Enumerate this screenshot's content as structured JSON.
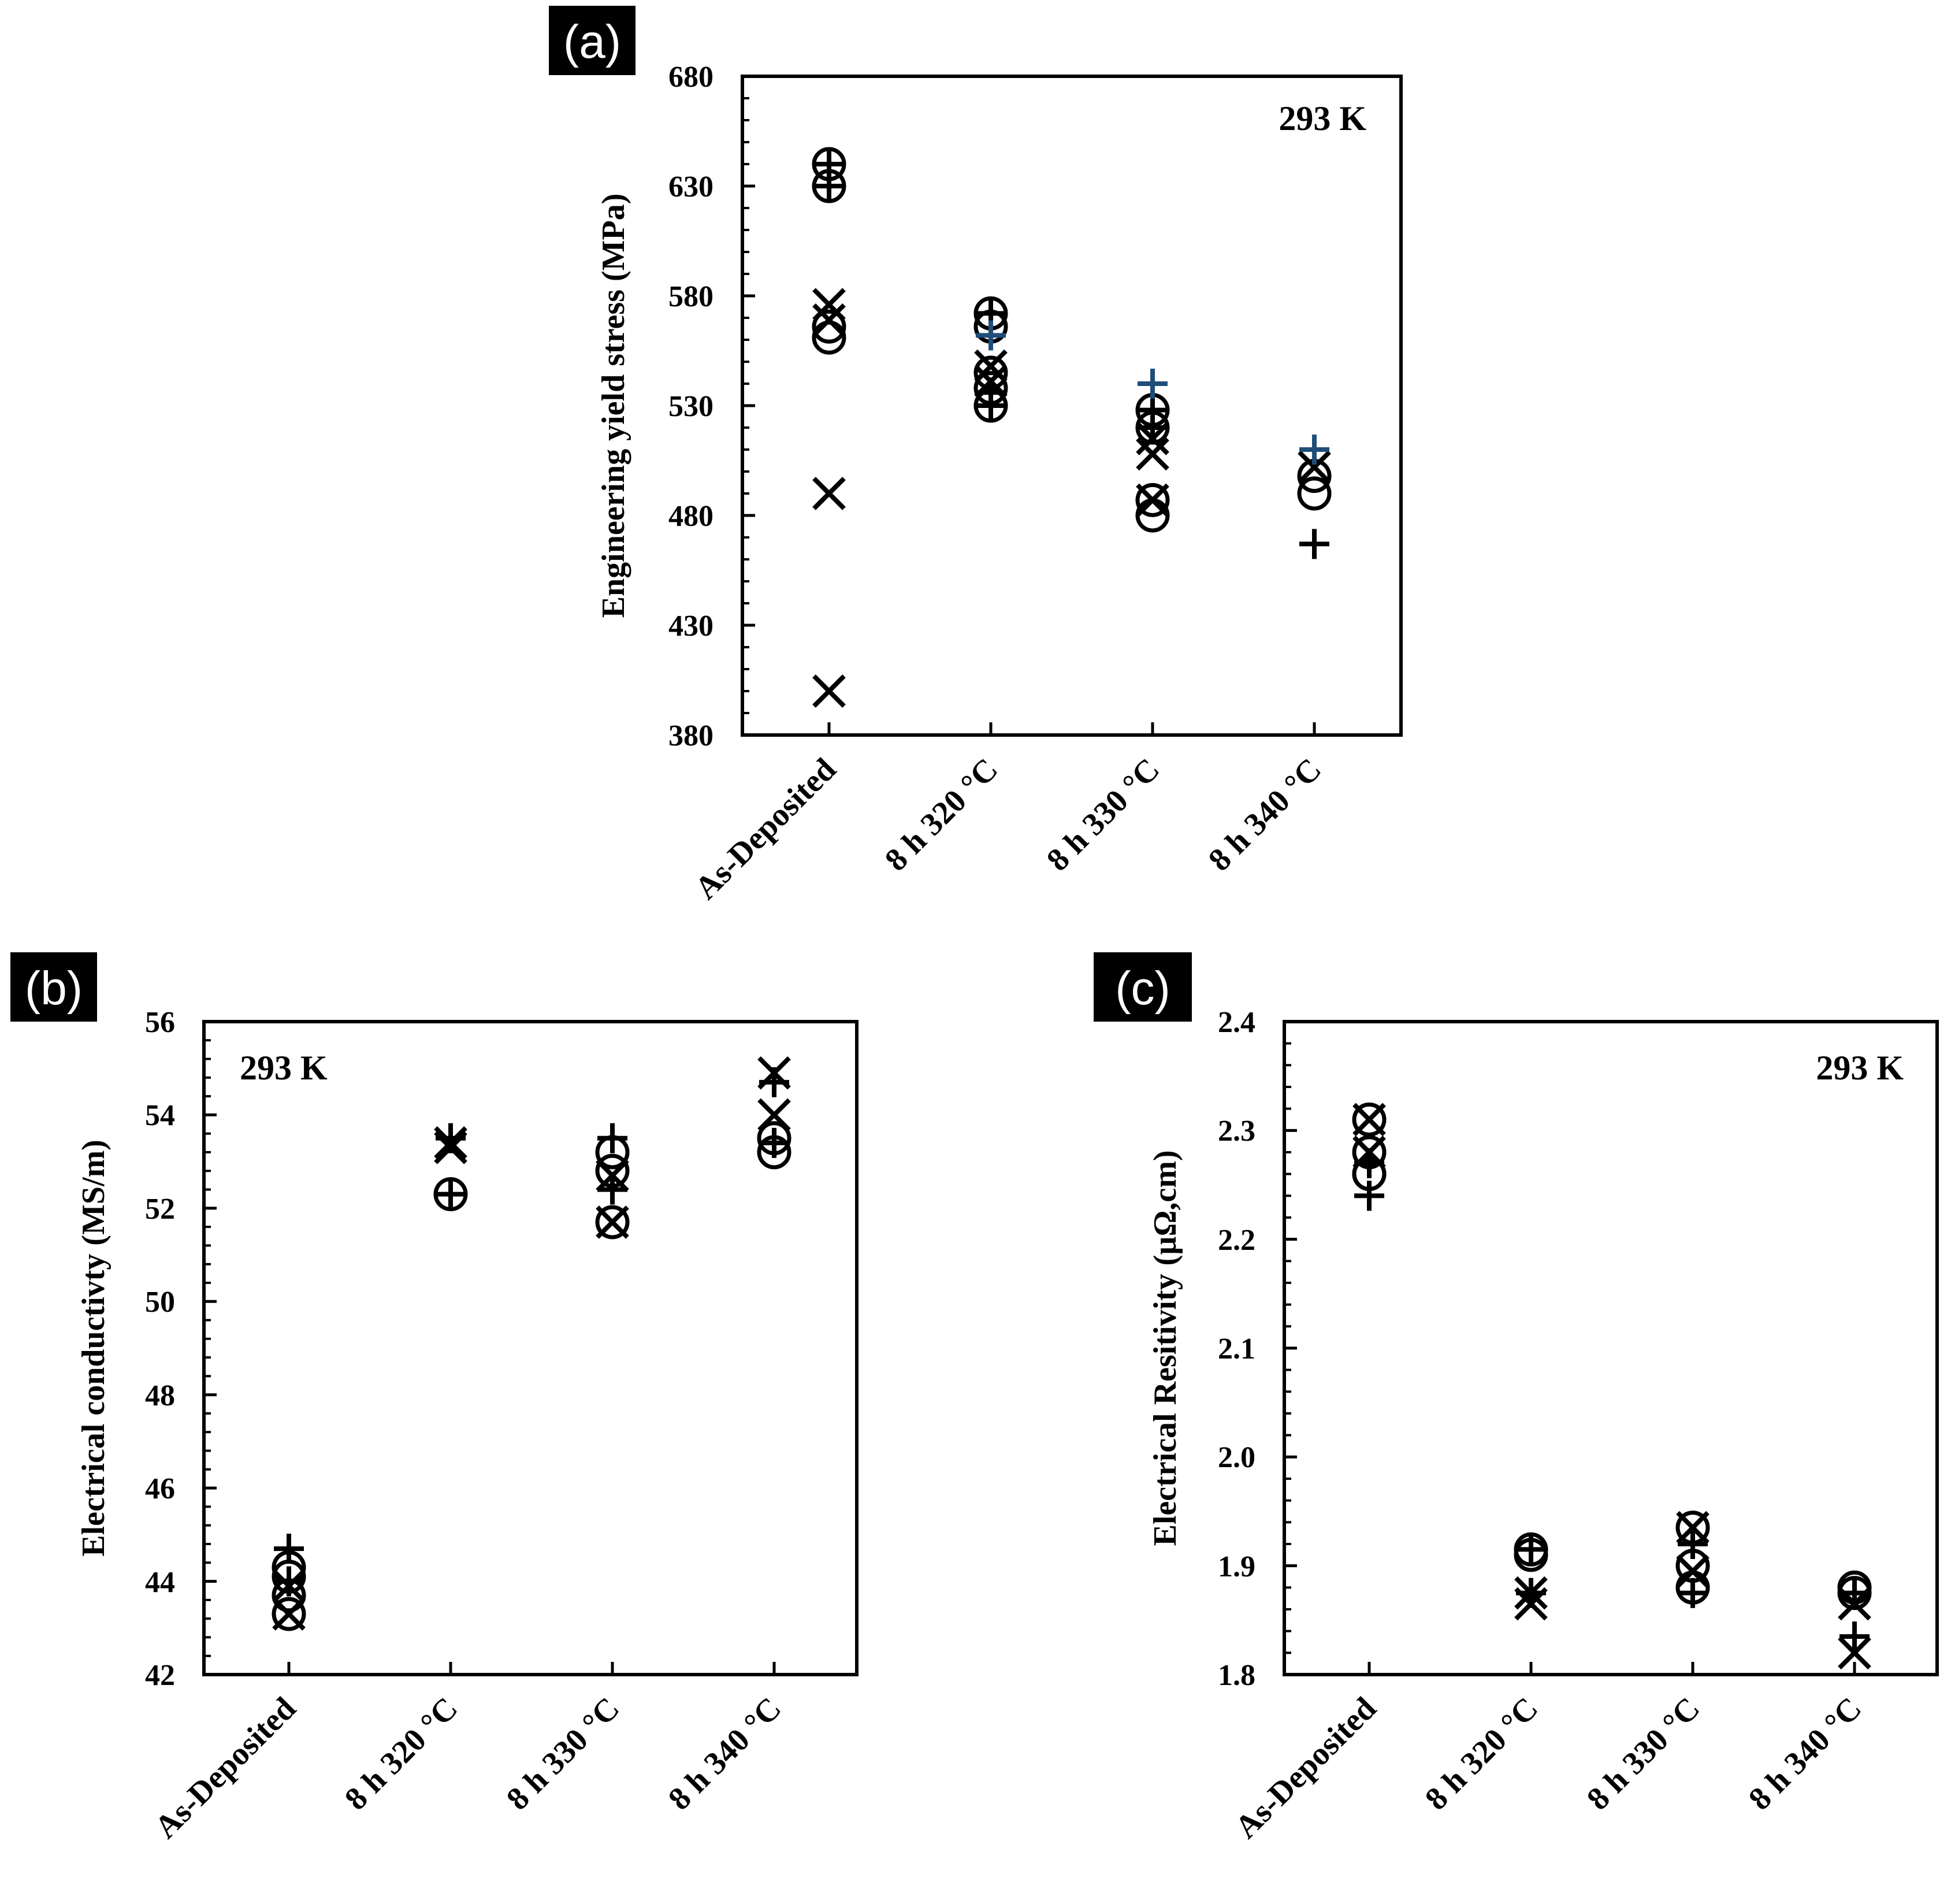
{
  "chart_data": [
    {
      "panel": "(a)",
      "type": "scatter",
      "ylabel": "Engineering yield  stress (MPa)",
      "annotation": "293 K",
      "categories": [
        "As-Deposited",
        "8 h 320 °C",
        "8 h 330 °C",
        "8 h 340 °C"
      ],
      "ylim": [
        380,
        680
      ],
      "yticks": [
        "380",
        "430",
        "480",
        "530",
        "580",
        "630",
        "680"
      ],
      "series": [
        {
          "name": "circle",
          "marker": "circle",
          "color": "#000000",
          "values": [
            [
              0,
              640
            ],
            [
              0,
              630
            ],
            [
              0,
              566
            ],
            [
              0,
              561
            ],
            [
              1,
              572
            ],
            [
              1,
              566
            ],
            [
              1,
              545
            ],
            [
              1,
              538
            ],
            [
              1,
              530
            ],
            [
              2,
              528
            ],
            [
              2,
              520
            ],
            [
              2,
              487
            ],
            [
              2,
              480
            ],
            [
              3,
              498
            ],
            [
              3,
              490
            ]
          ]
        },
        {
          "name": "x",
          "marker": "x",
          "color": "#000000",
          "values": [
            [
              0,
              576
            ],
            [
              0,
              569
            ],
            [
              0,
              490
            ],
            [
              0,
              400
            ],
            [
              1,
              548
            ],
            [
              1,
              541
            ],
            [
              2,
              515
            ],
            [
              2,
              508
            ],
            [
              2,
              487
            ],
            [
              3,
              502
            ]
          ]
        },
        {
          "name": "plus",
          "marker": "plus",
          "color": "#000000",
          "values": [
            [
              0,
              640
            ],
            [
              0,
              630
            ],
            [
              1,
              572
            ],
            [
              1,
              536
            ],
            [
              1,
              530
            ],
            [
              2,
              528
            ],
            [
              2,
              520
            ],
            [
              3,
              467
            ]
          ]
        },
        {
          "name": "plus-blue",
          "marker": "plus",
          "color": "#1f4e79",
          "values": [
            [
              1,
              562
            ],
            [
              2,
              540
            ],
            [
              3,
              510
            ]
          ]
        }
      ]
    },
    {
      "panel": "(b)",
      "type": "scatter",
      "ylabel": "Electrical conductivty (MS/m)",
      "annotation": "293 K",
      "categories": [
        "As-Deposited",
        "8 h 320 °C",
        "8 h 330 °C",
        "8 h 340 °C"
      ],
      "ylim": [
        42,
        56
      ],
      "yticks": [
        "42",
        "44",
        "46",
        "48",
        "50",
        "52",
        "54",
        "56"
      ],
      "series": [
        {
          "name": "circle",
          "marker": "circle",
          "color": "#000000",
          "values": [
            [
              0,
              44.3
            ],
            [
              0,
              44.1
            ],
            [
              0,
              43.7
            ],
            [
              0,
              43.3
            ],
            [
              1,
              52.3
            ],
            [
              2,
              53.2
            ],
            [
              2,
              52.8
            ],
            [
              2,
              51.7
            ],
            [
              3,
              53.5
            ],
            [
              3,
              53.2
            ]
          ]
        },
        {
          "name": "x",
          "marker": "x",
          "color": "#000000",
          "values": [
            [
              0,
              43.9
            ],
            [
              0,
              43.3
            ],
            [
              1,
              53.4
            ],
            [
              1,
              53.3
            ],
            [
              2,
              52.7
            ],
            [
              2,
              51.7
            ],
            [
              3,
              54.9
            ],
            [
              3,
              54.0
            ]
          ]
        },
        {
          "name": "plus",
          "marker": "plus",
          "color": "#000000",
          "values": [
            [
              0,
              44.7
            ],
            [
              0,
              44.0
            ],
            [
              1,
              53.5
            ],
            [
              1,
              52.3
            ],
            [
              2,
              53.5
            ],
            [
              2,
              52.4
            ],
            [
              3,
              54.7
            ],
            [
              3,
              53.4
            ]
          ]
        }
      ]
    },
    {
      "panel": "(c)",
      "type": "scatter",
      "ylabel": "Electrical Resitivity  (µΩ,cm)",
      "annotation": "293 K",
      "categories": [
        "As-Deposited",
        "8 h 320 °C",
        "8 h 330 °C",
        "8 h 340 °C"
      ],
      "ylim": [
        1.8,
        2.4
      ],
      "yticks": [
        "1.8",
        "1.9",
        "2.0",
        "2.1",
        "2.2",
        "2.3",
        "2.4"
      ],
      "series": [
        {
          "name": "circle",
          "marker": "circle",
          "color": "#000000",
          "values": [
            [
              0,
              2.31
            ],
            [
              0,
              2.28
            ],
            [
              0,
              2.26
            ],
            [
              0,
              2.26
            ],
            [
              1,
              1.915
            ],
            [
              1,
              1.91
            ],
            [
              2,
              1.935
            ],
            [
              2,
              1.9
            ],
            [
              2,
              1.88
            ],
            [
              3,
              1.88
            ],
            [
              3,
              1.875
            ]
          ]
        },
        {
          "name": "x",
          "marker": "x",
          "color": "#000000",
          "values": [
            [
              0,
              2.31
            ],
            [
              0,
              2.28
            ],
            [
              1,
              1.875
            ],
            [
              1,
              1.865
            ],
            [
              2,
              1.935
            ],
            [
              2,
              1.895
            ],
            [
              3,
              1.865
            ],
            [
              3,
              1.82
            ]
          ]
        },
        {
          "name": "plus",
          "marker": "plus",
          "color": "#000000",
          "values": [
            [
              0,
              2.27
            ],
            [
              0,
              2.24
            ],
            [
              1,
              1.915
            ],
            [
              1,
              1.875
            ],
            [
              2,
              1.92
            ],
            [
              2,
              1.875
            ],
            [
              3,
              1.875
            ],
            [
              3,
              1.835
            ]
          ]
        }
      ]
    }
  ]
}
